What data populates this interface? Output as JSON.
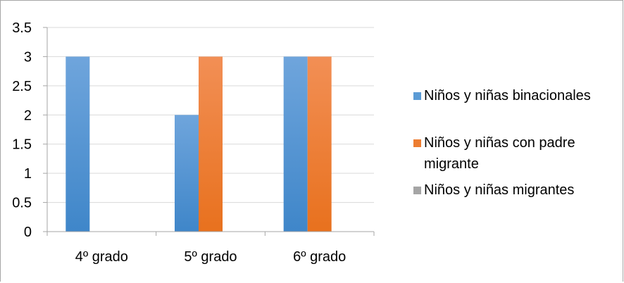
{
  "chart_data": {
    "type": "bar",
    "categories": [
      "4º grado",
      "5º grado",
      "6º grado"
    ],
    "series": [
      {
        "name": "Niños y niñas binacionales",
        "values": [
          3,
          2,
          3
        ],
        "color": "#5b9bd5"
      },
      {
        "name": "Niños y niñas con padre migrante",
        "values": [
          0,
          3,
          3
        ],
        "color": "#ed7d31"
      },
      {
        "name": "Niños y niñas migrantes",
        "values": [
          0,
          0,
          0
        ],
        "color": "#a5a5a5"
      }
    ],
    "ylim": [
      0,
      3.5
    ],
    "yticks": [
      "0",
      "0.5",
      "1",
      "1.5",
      "2",
      "2.5",
      "3",
      "3.5"
    ],
    "grid": true,
    "legend_position": "right",
    "title": "",
    "xlabel": "",
    "ylabel": ""
  }
}
